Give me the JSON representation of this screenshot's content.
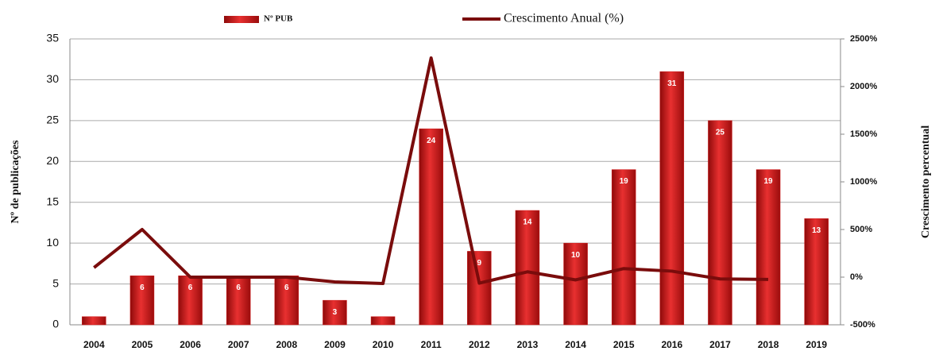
{
  "chart_data": {
    "type": "bar-line",
    "categories": [
      "2004",
      "2005",
      "2006",
      "2007",
      "2008",
      "2009",
      "2010",
      "2011",
      "2012",
      "2013",
      "2014",
      "2015",
      "2016",
      "2017",
      "2018",
      "2019"
    ],
    "ylabel": "Nº de publicações",
    "y2label": "Crescimento percentual",
    "ylim": [
      0,
      35
    ],
    "yticks": [
      0,
      5,
      10,
      15,
      20,
      25,
      30,
      35
    ],
    "y2lim": [
      -500,
      2500
    ],
    "y2ticks": [
      {
        "value": -500,
        "label": "-500%"
      },
      {
        "value": 0,
        "label": "0%"
      },
      {
        "value": 500,
        "label": "500%"
      },
      {
        "value": 1000,
        "label": "1000%"
      },
      {
        "value": 1500,
        "label": "1500%"
      },
      {
        "value": 2000,
        "label": "2000%"
      },
      {
        "value": 2500,
        "label": "2500%"
      }
    ],
    "grid": true,
    "legend": "top",
    "series": [
      {
        "name": "Nº PUB",
        "type": "bar",
        "color": "#d01818",
        "values": [
          1,
          6,
          6,
          6,
          6,
          3,
          1,
          24,
          9,
          14,
          10,
          19,
          31,
          25,
          19,
          13
        ]
      },
      {
        "name": "Crescimento Anual (%)",
        "type": "line",
        "axis": "y2",
        "color": "#7a0c0c",
        "values": [
          100,
          500,
          0,
          0,
          0,
          -50,
          -67,
          2300,
          -63,
          56,
          -29,
          90,
          63,
          -19,
          -24,
          null
        ]
      }
    ]
  }
}
